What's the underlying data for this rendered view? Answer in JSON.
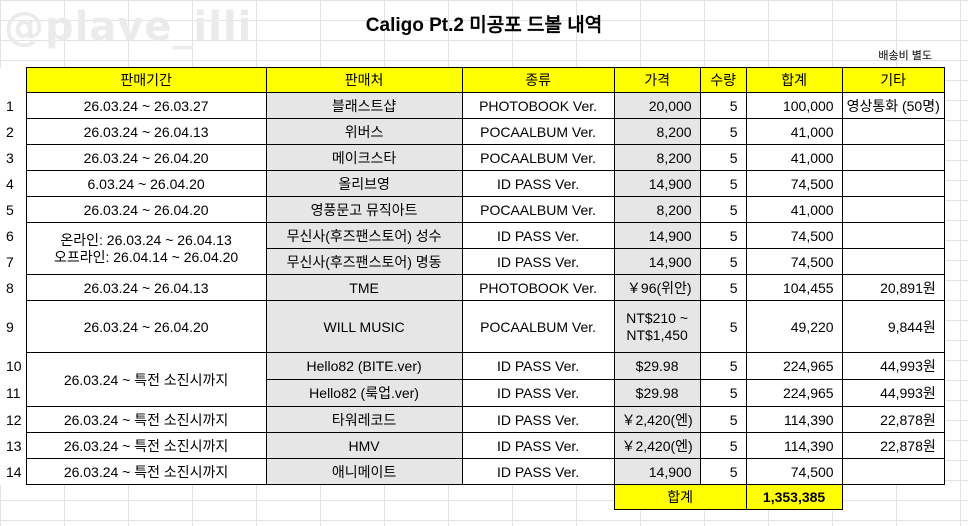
{
  "watermark": "@plave_illi",
  "title": "Caligo Pt.2 미공포 드볼 내역",
  "note": "배송비 별도",
  "headers": [
    "판매기간",
    "판매처",
    "종류",
    "가격",
    "수량",
    "합계",
    "기타"
  ],
  "rows": [
    {
      "no": "1",
      "period": "26.03.24 ~ 26.03.27",
      "seller": "블래스트샵",
      "type": "PHOTOBOOK Ver.",
      "price": "20,000",
      "qty": "5",
      "total": "100,000",
      "etc": "영상통화 (50명)"
    },
    {
      "no": "2",
      "period": "26.03.24 ~ 26.04.13",
      "seller": "위버스",
      "type": "POCAALBUM Ver.",
      "price": "8,200",
      "qty": "5",
      "total": "41,000",
      "etc": ""
    },
    {
      "no": "3",
      "period": "26.03.24 ~ 26.04.20",
      "seller": "메이크스타",
      "type": "POCAALBUM Ver.",
      "price": "8,200",
      "qty": "5",
      "total": "41,000",
      "etc": ""
    },
    {
      "no": "4",
      "period": "6.03.24 ~ 26.04.20",
      "seller": "올리브영",
      "type": "ID PASS Ver.",
      "price": "14,900",
      "qty": "5",
      "total": "74,500",
      "etc": ""
    },
    {
      "no": "5",
      "period": "26.03.24 ~ 26.04.20",
      "seller": "영풍문고 뮤직아트",
      "type": "POCAALBUM Ver.",
      "price": "8,200",
      "qty": "5",
      "total": "41,000",
      "etc": ""
    },
    {
      "no": "6",
      "period_line1": "온라인: 26.03.24 ~ 26.04.13",
      "seller": "무신사(후즈팬스토어) 성수",
      "type": "ID PASS Ver.",
      "price": "14,900",
      "qty": "5",
      "total": "74,500",
      "etc": ""
    },
    {
      "no": "7",
      "period_line2": "오프라인: 26.04.14 ~ 26.04.20",
      "seller": "무신사(후즈팬스토어) 명동",
      "type": "ID PASS Ver.",
      "price": "14,900",
      "qty": "5",
      "total": "74,500",
      "etc": ""
    },
    {
      "no": "8",
      "period": "26.03.24 ~ 26.04.13",
      "seller": "TME",
      "type": "PHOTOBOOK Ver.",
      "price": "￥96(위안)",
      "qty": "5",
      "total": "104,455",
      "etc": "20,891원"
    },
    {
      "no": "9",
      "period": "26.03.24 ~ 26.04.20",
      "seller": "WILL MUSIC",
      "type": "POCAALBUM Ver.",
      "price_line1": "NT$210 ~",
      "price_line2": "NT$1,450",
      "qty": "5",
      "total": "49,220",
      "etc": "9,844원"
    },
    {
      "no": "10",
      "period": "26.03.24 ~ 특전 소진시까지",
      "seller": "Hello82 (BITE.ver)",
      "type": "ID PASS Ver.",
      "price": "$29.98",
      "qty": "5",
      "total": "224,965",
      "etc": "44,993원"
    },
    {
      "no": "11",
      "seller": "Hello82 (룩업.ver)",
      "type": "ID PASS Ver.",
      "price": "$29.98",
      "qty": "5",
      "total": "224,965",
      "etc": "44,993원"
    },
    {
      "no": "12",
      "period": "26.03.24 ~ 특전 소진시까지",
      "seller": "타워레코드",
      "type": "ID PASS Ver.",
      "price": "￥2,420(엔)",
      "qty": "5",
      "total": "114,390",
      "etc": "22,878원"
    },
    {
      "no": "13",
      "period": "26.03.24 ~ 특전 소진시까지",
      "seller": "HMV",
      "type": "ID PASS Ver.",
      "price": "￥2,420(엔)",
      "qty": "5",
      "total": "114,390",
      "etc": "22,878원"
    },
    {
      "no": "14",
      "period": "26.03.24 ~ 특전 소진시까지",
      "seller": "애니메이트",
      "type": "ID PASS Ver.",
      "price": "14,900",
      "qty": "5",
      "total": "74,500",
      "etc": ""
    }
  ],
  "grand_total": {
    "label": "합계",
    "value": "1,353,385"
  }
}
